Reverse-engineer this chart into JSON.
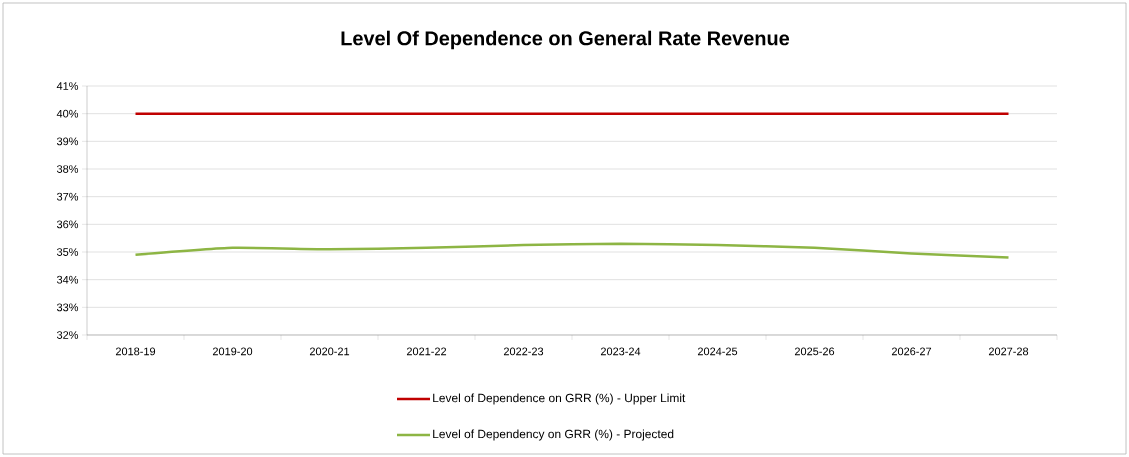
{
  "chart_data": {
    "type": "line",
    "title": "Level Of Dependence on General Rate Revenue",
    "categories": [
      "2018-19",
      "2019-20",
      "2020-21",
      "2021-22",
      "2022-23",
      "2023-24",
      "2024-25",
      "2025-26",
      "2026-27",
      "2027-28"
    ],
    "series": [
      {
        "name": "Level of Dependence on GRR (%) - Upper Limit",
        "color": "#c00000",
        "values": [
          40,
          40,
          40,
          40,
          40,
          40,
          40,
          40,
          40,
          40
        ]
      },
      {
        "name": "Level of Dependency on GRR (%) - Projected",
        "color": "#8db544",
        "values": [
          34.9,
          35.15,
          35.1,
          35.15,
          35.25,
          35.3,
          35.25,
          35.15,
          34.95,
          34.8
        ]
      }
    ],
    "ylim": [
      32,
      41
    ],
    "yticks": [
      {
        "value": 32,
        "label": "32%"
      },
      {
        "value": 33,
        "label": "33%"
      },
      {
        "value": 34,
        "label": "34%"
      },
      {
        "value": 35,
        "label": "35%"
      },
      {
        "value": 36,
        "label": "36%"
      },
      {
        "value": 37,
        "label": "37%"
      },
      {
        "value": 38,
        "label": "38%"
      },
      {
        "value": 39,
        "label": "39%"
      },
      {
        "value": 40,
        "label": "40%"
      },
      {
        "value": 41,
        "label": "41%"
      }
    ],
    "grid": "y",
    "legend": "bottom",
    "marker": "none",
    "line_style": "solid"
  }
}
